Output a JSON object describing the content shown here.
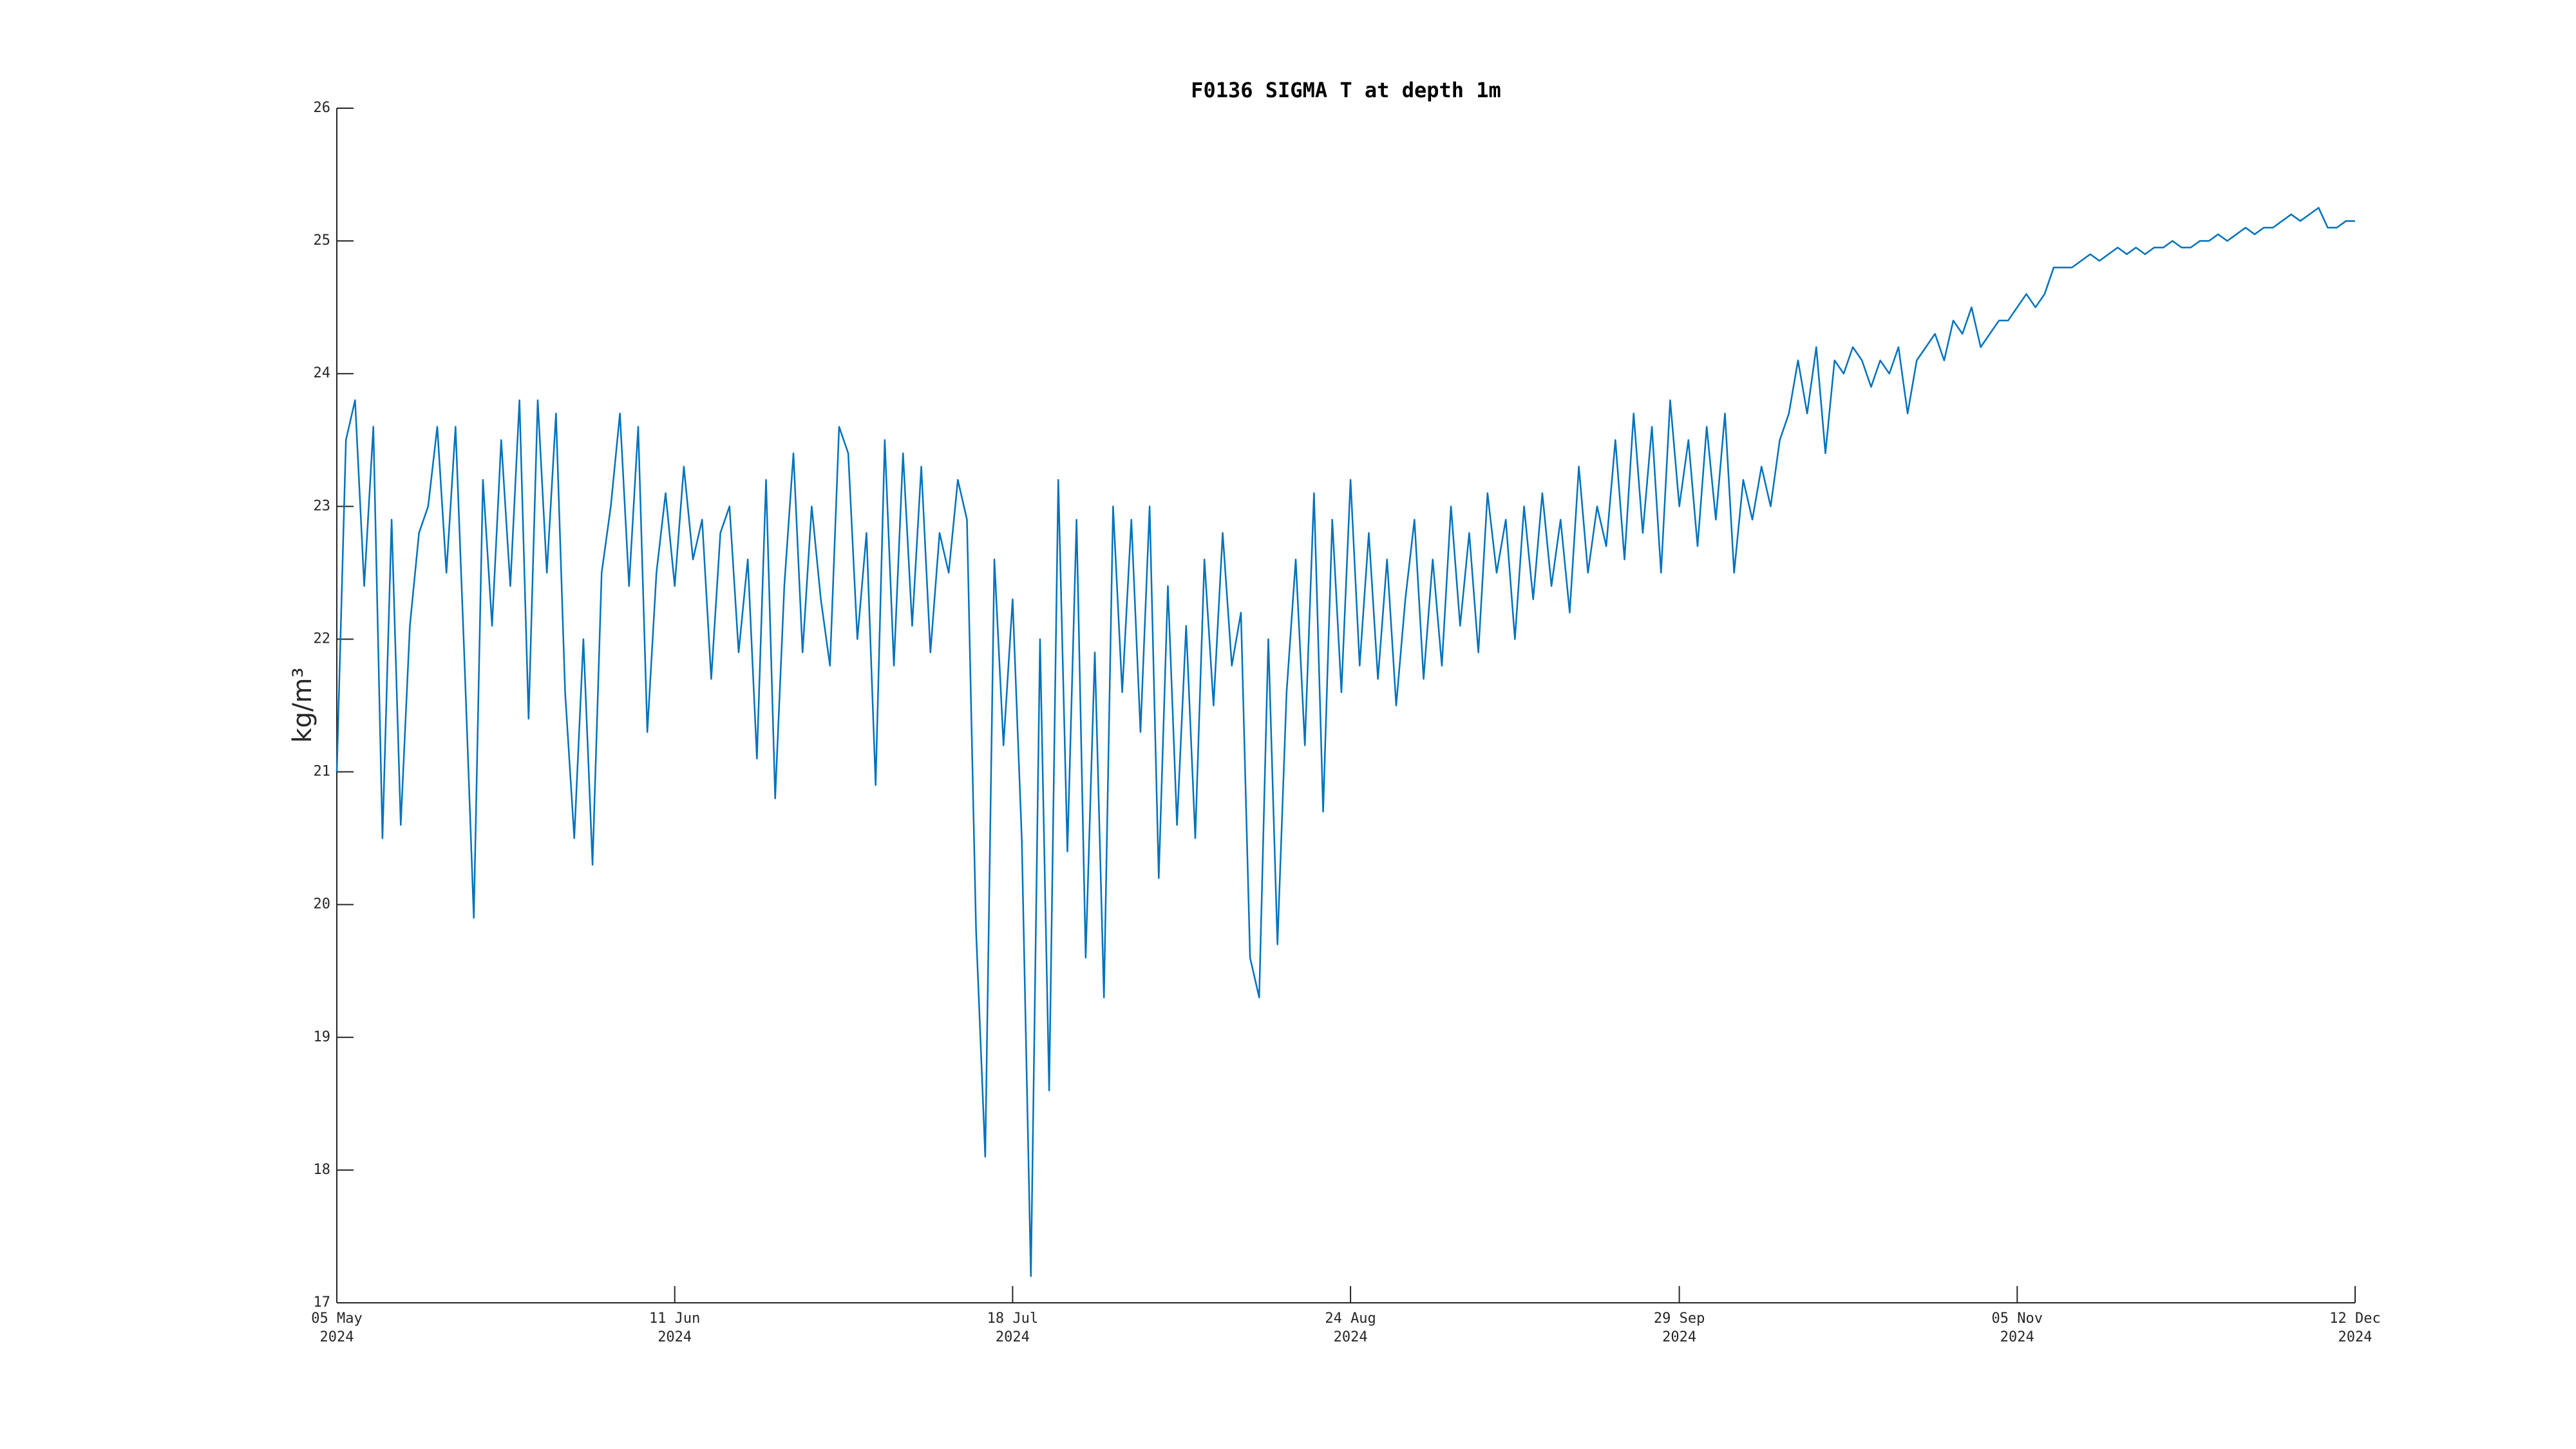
{
  "chart_data": {
    "type": "line",
    "title": "F0136 SIGMA T at depth 1m",
    "y_label": "kg/m³",
    "xlim": [
      "2024-05-05",
      "2024-12-12"
    ],
    "xticks": [
      {
        "value": "2024-05-05",
        "label": "05 May\n2024"
      },
      {
        "value": "2024-06-11",
        "label": "11 Jun\n2024"
      },
      {
        "value": "2024-07-18",
        "label": "18 Jul\n2024"
      },
      {
        "value": "2024-08-24",
        "label": "24 Aug\n2024"
      },
      {
        "value": "2024-09-29",
        "label": "29 Sep\n2024"
      },
      {
        "value": "2024-11-05",
        "label": "05 Nov\n2024"
      },
      {
        "value": "2024-12-12",
        "label": "12 Dec\n2024"
      }
    ],
    "ylim": [
      17,
      26
    ],
    "yticks": [
      17,
      18,
      19,
      20,
      21,
      22,
      23,
      24,
      25,
      26
    ],
    "grid": false,
    "x": [
      "2024-05-05",
      "2024-05-06",
      "2024-05-07",
      "2024-05-08",
      "2024-05-09",
      "2024-05-10",
      "2024-05-11",
      "2024-05-12",
      "2024-05-13",
      "2024-05-14",
      "2024-05-15",
      "2024-05-16",
      "2024-05-17",
      "2024-05-18",
      "2024-05-19",
      "2024-05-20",
      "2024-05-21",
      "2024-05-22",
      "2024-05-23",
      "2024-05-24",
      "2024-05-25",
      "2024-05-26",
      "2024-05-27",
      "2024-05-28",
      "2024-05-29",
      "2024-05-30",
      "2024-05-31",
      "2024-06-01",
      "2024-06-02",
      "2024-06-03",
      "2024-06-04",
      "2024-06-05",
      "2024-06-06",
      "2024-06-07",
      "2024-06-08",
      "2024-06-09",
      "2024-06-10",
      "2024-06-11",
      "2024-06-12",
      "2024-06-13",
      "2024-06-14",
      "2024-06-15",
      "2024-06-16",
      "2024-06-17",
      "2024-06-18",
      "2024-06-19",
      "2024-06-20",
      "2024-06-21",
      "2024-06-22",
      "2024-06-23",
      "2024-06-24",
      "2024-06-25",
      "2024-06-26",
      "2024-06-27",
      "2024-06-28",
      "2024-06-29",
      "2024-06-30",
      "2024-07-01",
      "2024-07-02",
      "2024-07-03",
      "2024-07-04",
      "2024-07-05",
      "2024-07-06",
      "2024-07-07",
      "2024-07-08",
      "2024-07-09",
      "2024-07-10",
      "2024-07-11",
      "2024-07-12",
      "2024-07-13",
      "2024-07-14",
      "2024-07-15",
      "2024-07-16",
      "2024-07-17",
      "2024-07-18",
      "2024-07-19",
      "2024-07-20",
      "2024-07-21",
      "2024-07-22",
      "2024-07-23",
      "2024-07-24",
      "2024-07-25",
      "2024-07-26",
      "2024-07-27",
      "2024-07-28",
      "2024-07-29",
      "2024-07-30",
      "2024-07-31",
      "2024-08-01",
      "2024-08-02",
      "2024-08-03",
      "2024-08-04",
      "2024-08-05",
      "2024-08-06",
      "2024-08-07",
      "2024-08-08",
      "2024-08-09",
      "2024-08-10",
      "2024-08-11",
      "2024-08-12",
      "2024-08-13",
      "2024-08-14",
      "2024-08-15",
      "2024-08-16",
      "2024-08-17",
      "2024-08-18",
      "2024-08-19",
      "2024-08-20",
      "2024-08-21",
      "2024-08-22",
      "2024-08-23",
      "2024-08-24",
      "2024-08-25",
      "2024-08-26",
      "2024-08-27",
      "2024-08-28",
      "2024-08-29",
      "2024-08-30",
      "2024-08-31",
      "2024-09-01",
      "2024-09-02",
      "2024-09-03",
      "2024-09-04",
      "2024-09-05",
      "2024-09-06",
      "2024-09-07",
      "2024-09-08",
      "2024-09-09",
      "2024-09-10",
      "2024-09-11",
      "2024-09-12",
      "2024-09-13",
      "2024-09-14",
      "2024-09-15",
      "2024-09-16",
      "2024-09-17",
      "2024-09-18",
      "2024-09-19",
      "2024-09-20",
      "2024-09-21",
      "2024-09-22",
      "2024-09-23",
      "2024-09-24",
      "2024-09-25",
      "2024-09-26",
      "2024-09-27",
      "2024-09-28",
      "2024-09-29",
      "2024-09-30",
      "2024-10-01",
      "2024-10-02",
      "2024-10-03",
      "2024-10-04",
      "2024-10-05",
      "2024-10-06",
      "2024-10-07",
      "2024-10-08",
      "2024-10-09",
      "2024-10-10",
      "2024-10-11",
      "2024-10-12",
      "2024-10-13",
      "2024-10-14",
      "2024-10-15",
      "2024-10-16",
      "2024-10-17",
      "2024-10-18",
      "2024-10-19",
      "2024-10-20",
      "2024-10-21",
      "2024-10-22",
      "2024-10-23",
      "2024-10-24",
      "2024-10-25",
      "2024-10-26",
      "2024-10-27",
      "2024-10-28",
      "2024-10-29",
      "2024-10-30",
      "2024-10-31",
      "2024-11-01",
      "2024-11-02",
      "2024-11-03",
      "2024-11-04",
      "2024-11-05",
      "2024-11-06",
      "2024-11-07",
      "2024-11-08",
      "2024-11-09",
      "2024-11-10",
      "2024-11-11",
      "2024-11-12",
      "2024-11-13",
      "2024-11-14",
      "2024-11-15",
      "2024-11-16",
      "2024-11-17",
      "2024-11-18",
      "2024-11-19",
      "2024-11-20",
      "2024-11-21",
      "2024-11-22",
      "2024-11-23",
      "2024-11-24",
      "2024-11-25",
      "2024-11-26",
      "2024-11-27",
      "2024-11-28",
      "2024-11-29",
      "2024-11-30",
      "2024-12-01",
      "2024-12-02",
      "2024-12-03",
      "2024-12-04",
      "2024-12-05",
      "2024-12-06",
      "2024-12-07",
      "2024-12-08",
      "2024-12-09",
      "2024-12-10",
      "2024-12-11",
      "2024-12-12"
    ],
    "series": [
      {
        "color": "#0072bd",
        "values": [
          21.0,
          23.5,
          23.8,
          22.4,
          23.6,
          20.5,
          22.9,
          20.6,
          22.1,
          22.8,
          23.0,
          23.6,
          22.5,
          23.6,
          21.8,
          19.9,
          23.2,
          22.1,
          23.5,
          22.4,
          23.8,
          21.4,
          23.8,
          22.5,
          23.7,
          21.6,
          20.5,
          22.0,
          20.3,
          22.5,
          23.0,
          23.7,
          22.4,
          23.6,
          21.3,
          22.5,
          23.1,
          22.4,
          23.3,
          22.6,
          22.9,
          21.7,
          22.8,
          23.0,
          21.9,
          22.6,
          21.1,
          23.2,
          20.8,
          22.4,
          23.4,
          21.9,
          23.0,
          22.3,
          21.8,
          23.6,
          23.4,
          22.0,
          22.8,
          20.9,
          23.5,
          21.8,
          23.4,
          22.1,
          23.3,
          21.9,
          22.8,
          22.5,
          23.2,
          22.9,
          19.8,
          18.1,
          22.6,
          21.2,
          22.3,
          20.5,
          17.2,
          22.0,
          18.6,
          23.2,
          20.4,
          22.9,
          19.6,
          21.9,
          19.3,
          23.0,
          21.6,
          22.9,
          21.3,
          23.0,
          20.2,
          22.4,
          20.6,
          22.1,
          20.5,
          22.6,
          21.5,
          22.8,
          21.8,
          22.2,
          19.6,
          19.3,
          22.0,
          19.7,
          21.6,
          22.6,
          21.2,
          23.1,
          20.7,
          22.9,
          21.6,
          23.2,
          21.8,
          22.8,
          21.7,
          22.6,
          21.5,
          22.3,
          22.9,
          21.7,
          22.6,
          21.8,
          23.0,
          22.1,
          22.8,
          21.9,
          23.1,
          22.5,
          22.9,
          22.0,
          23.0,
          22.3,
          23.1,
          22.4,
          22.9,
          22.2,
          23.3,
          22.5,
          23.0,
          22.7,
          23.5,
          22.6,
          23.7,
          22.8,
          23.6,
          22.5,
          23.8,
          23.0,
          23.5,
          22.7,
          23.6,
          22.9,
          23.7,
          22.5,
          23.2,
          22.9,
          23.3,
          23.0,
          23.5,
          23.7,
          24.1,
          23.7,
          24.2,
          23.4,
          24.1,
          24.0,
          24.2,
          24.1,
          23.9,
          24.1,
          24.0,
          24.2,
          23.7,
          24.1,
          24.2,
          24.3,
          24.1,
          24.4,
          24.3,
          24.5,
          24.2,
          24.3,
          24.4,
          24.4,
          24.5,
          24.6,
          24.5,
          24.6,
          24.8,
          24.8,
          24.8,
          24.85,
          24.9,
          24.85,
          24.9,
          24.95,
          24.9,
          24.95,
          24.9,
          24.95,
          24.95,
          25.0,
          24.95,
          24.95,
          25.0,
          25.0,
          25.05,
          25.0,
          25.05,
          25.1,
          25.05,
          25.1,
          25.1,
          25.15,
          25.2,
          25.15,
          25.2,
          25.25,
          25.1,
          25.1,
          25.15,
          25.15
        ]
      }
    ]
  }
}
